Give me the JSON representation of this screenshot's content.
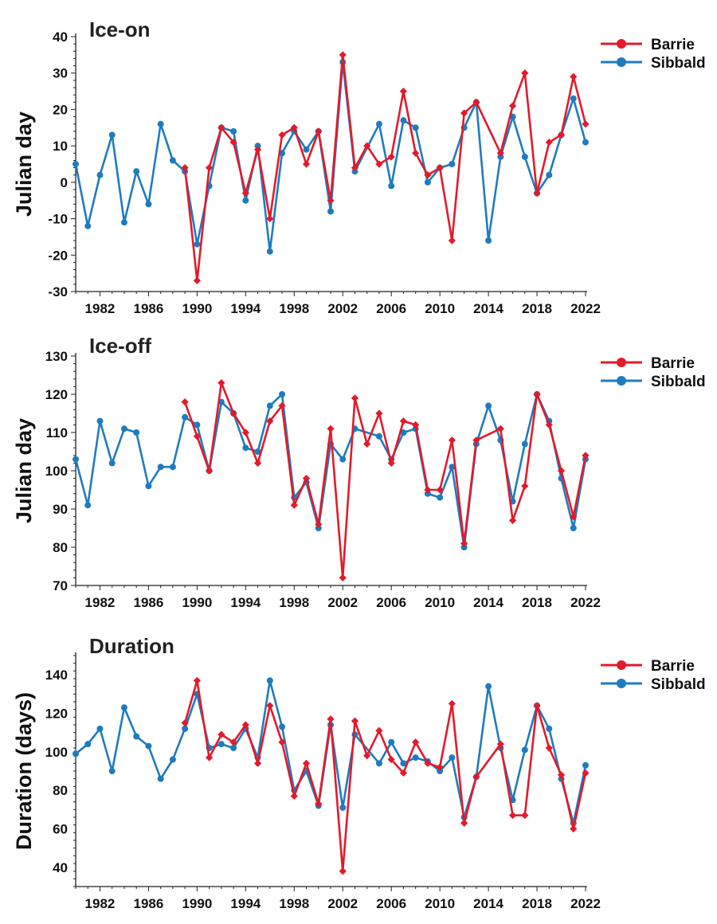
{
  "colors": {
    "Barrie": "#e31a2a",
    "Sibbald": "#1f7bbf"
  },
  "chart_data": [
    {
      "type": "line",
      "title": "Ice-on",
      "xlabel": "",
      "ylabel": "Julian day",
      "xlim": [
        1980,
        2022
      ],
      "ylim": [
        -30,
        40
      ],
      "yticks": [
        -30,
        -20,
        -10,
        0,
        10,
        20,
        30,
        40
      ],
      "xticks": [
        1982,
        1986,
        1990,
        1994,
        1998,
        2002,
        2006,
        2010,
        2014,
        2018,
        2022
      ],
      "legend_position": "top-right",
      "series": [
        {
          "name": "Barrie",
          "marker": "diamond",
          "x": [
            1989,
            1990,
            1991,
            1992,
            1993,
            1994,
            1995,
            1996,
            1997,
            1998,
            1999,
            2000,
            2001,
            2002,
            2003,
            2004,
            2005,
            2006,
            2007,
            2008,
            2009,
            2010,
            2011,
            2012,
            2013,
            2015,
            2016,
            2017,
            2018,
            2019,
            2020,
            2021,
            2022
          ],
          "y": [
            4,
            -27,
            4,
            15,
            11,
            -3,
            9,
            -10,
            13,
            15,
            5,
            14,
            -5,
            35,
            4,
            10,
            5,
            7,
            25,
            8,
            2,
            4,
            -16,
            19,
            22,
            8,
            21,
            30,
            -3,
            11,
            13,
            29,
            16
          ]
        },
        {
          "name": "Sibbald",
          "marker": "circle",
          "x": [
            1980,
            1981,
            1982,
            1983,
            1984,
            1985,
            1986,
            1987,
            1988,
            1989,
            1990,
            1991,
            1992,
            1993,
            1994,
            1995,
            1996,
            1997,
            1998,
            1999,
            2000,
            2001,
            2002,
            2003,
            2005,
            2006,
            2007,
            2008,
            2009,
            2010,
            2011,
            2012,
            2013,
            2014,
            2015,
            2016,
            2017,
            2018,
            2019,
            2020,
            2021,
            2022
          ],
          "y": [
            5,
            -12,
            2,
            13,
            -11,
            3,
            -6,
            16,
            6,
            3,
            -17,
            -1,
            15,
            14,
            -5,
            10,
            -19,
            8,
            14,
            9,
            14,
            -8,
            33,
            3,
            16,
            -1,
            17,
            15,
            0,
            4,
            5,
            15,
            22,
            -16,
            7,
            18,
            7,
            -3,
            2,
            13,
            23,
            11
          ]
        }
      ]
    },
    {
      "type": "line",
      "title": "Ice-off",
      "xlabel": "",
      "ylabel": "Julian day",
      "xlim": [
        1980,
        2022
      ],
      "ylim": [
        70,
        130
      ],
      "yticks": [
        70,
        80,
        90,
        100,
        110,
        120,
        130
      ],
      "xticks": [
        1982,
        1986,
        1990,
        1994,
        1998,
        2002,
        2006,
        2010,
        2014,
        2018,
        2022
      ],
      "legend_position": "top-right",
      "series": [
        {
          "name": "Barrie",
          "marker": "diamond",
          "x": [
            1989,
            1990,
            1991,
            1992,
            1993,
            1994,
            1995,
            1996,
            1997,
            1998,
            1999,
            2000,
            2001,
            2002,
            2003,
            2004,
            2005,
            2006,
            2007,
            2008,
            2009,
            2010,
            2011,
            2012,
            2013,
            2015,
            2016,
            2017,
            2018,
            2019,
            2020,
            2021,
            2022
          ],
          "y": [
            118,
            109,
            100,
            123,
            115,
            110,
            102,
            113,
            117,
            91,
            98,
            86,
            111,
            72,
            119,
            107,
            115,
            102,
            113,
            112,
            95,
            95,
            108,
            81,
            108,
            111,
            87,
            96,
            120,
            112,
            100,
            88,
            104
          ]
        },
        {
          "name": "Sibbald",
          "marker": "circle",
          "x": [
            1980,
            1981,
            1982,
            1983,
            1984,
            1985,
            1986,
            1987,
            1988,
            1989,
            1990,
            1991,
            1992,
            1993,
            1994,
            1995,
            1996,
            1997,
            1998,
            1999,
            2000,
            2001,
            2002,
            2003,
            2005,
            2006,
            2007,
            2008,
            2009,
            2010,
            2011,
            2012,
            2013,
            2014,
            2015,
            2016,
            2017,
            2018,
            2019,
            2020,
            2021,
            2022
          ],
          "y": [
            103,
            91,
            113,
            102,
            111,
            110,
            96,
            101,
            101,
            114,
            112,
            100,
            118,
            115,
            106,
            105,
            117,
            120,
            93,
            97,
            85,
            107,
            103,
            111,
            109,
            103,
            110,
            111,
            94,
            93,
            101,
            80,
            107,
            117,
            108,
            92,
            107,
            120,
            113,
            98,
            85,
            103
          ]
        }
      ]
    },
    {
      "type": "line",
      "title": "Duration",
      "xlabel": "",
      "ylabel": "Duration (days)",
      "xlim": [
        1980,
        2022
      ],
      "ylim": [
        30,
        150
      ],
      "yticks": [
        40,
        60,
        80,
        100,
        120,
        140
      ],
      "xticks": [
        1982,
        1986,
        1990,
        1994,
        1998,
        2002,
        2006,
        2010,
        2014,
        2018,
        2022
      ],
      "legend_position": "top-right",
      "series": [
        {
          "name": "Barrie",
          "marker": "diamond",
          "x": [
            1989,
            1990,
            1991,
            1992,
            1993,
            1994,
            1995,
            1996,
            1997,
            1998,
            1999,
            2000,
            2001,
            2002,
            2003,
            2004,
            2005,
            2006,
            2007,
            2008,
            2009,
            2010,
            2011,
            2012,
            2013,
            2015,
            2016,
            2017,
            2018,
            2019,
            2020,
            2021,
            2022
          ],
          "y": [
            115,
            137,
            97,
            109,
            105,
            114,
            94,
            124,
            105,
            77,
            94,
            73,
            117,
            38,
            116,
            98,
            111,
            96,
            89,
            105,
            94,
            92,
            125,
            63,
            87,
            104,
            67,
            67,
            124,
            102,
            88,
            60,
            89
          ]
        },
        {
          "name": "Sibbald",
          "marker": "circle",
          "x": [
            1980,
            1981,
            1982,
            1983,
            1984,
            1985,
            1986,
            1987,
            1988,
            1989,
            1990,
            1991,
            1992,
            1993,
            1994,
            1995,
            1996,
            1997,
            1998,
            1999,
            2000,
            2001,
            2002,
            2003,
            2005,
            2006,
            2007,
            2008,
            2009,
            2010,
            2011,
            2012,
            2013,
            2014,
            2015,
            2016,
            2017,
            2018,
            2019,
            2020,
            2021,
            2022
          ],
          "y": [
            99,
            104,
            112,
            90,
            123,
            108,
            103,
            86,
            96,
            112,
            130,
            102,
            104,
            102,
            112,
            97,
            137,
            113,
            80,
            90,
            72,
            114,
            71,
            109,
            94,
            105,
            94,
            97,
            95,
            90,
            97,
            66,
            87,
            134,
            102,
            75,
            101,
            124,
            112,
            86,
            63,
            93
          ]
        }
      ]
    }
  ]
}
